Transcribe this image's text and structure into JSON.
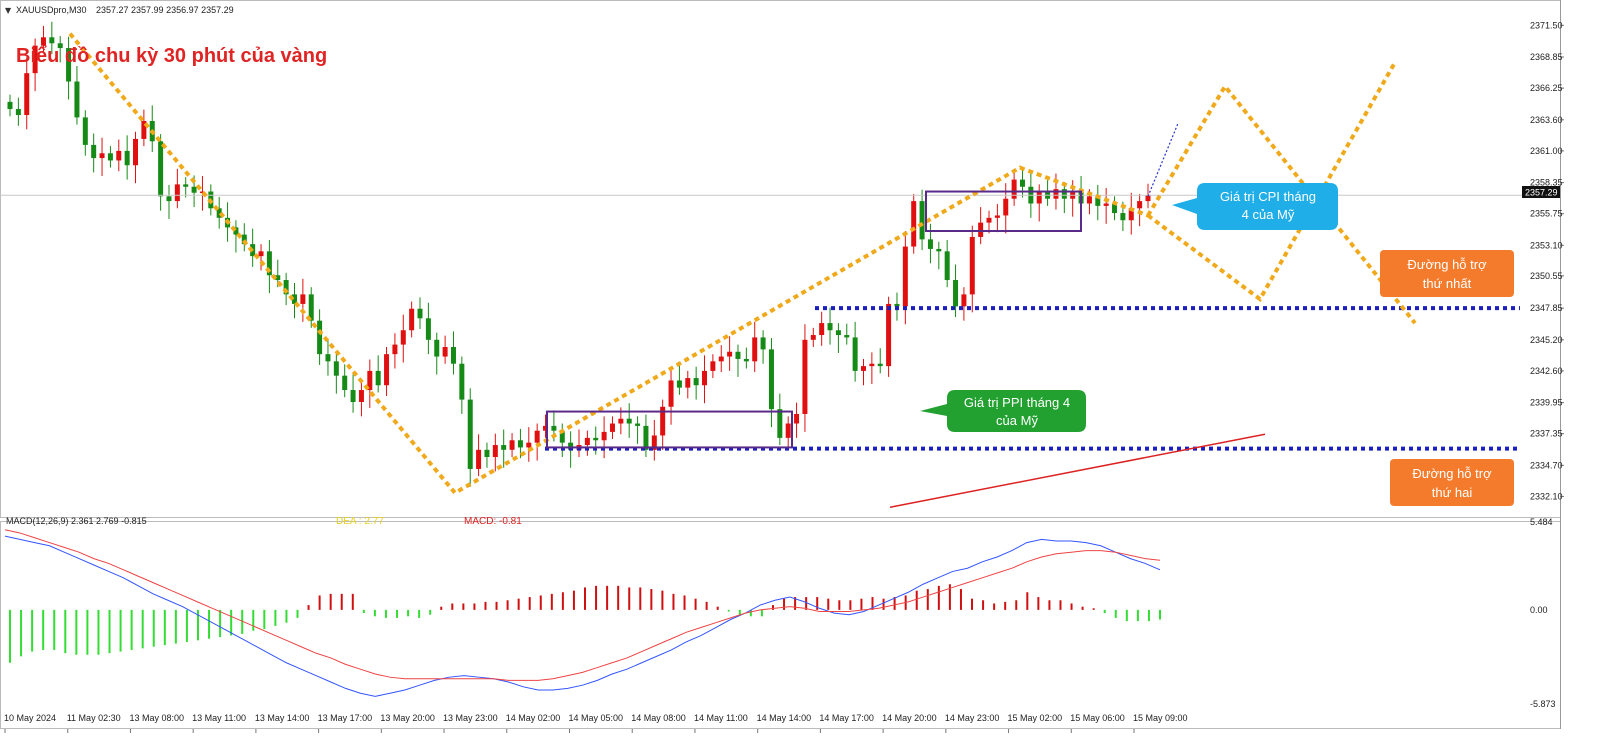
{
  "header": {
    "symbol_line": "XAUUSDpro,M30",
    "ohlc": "2357.27 2357.99 2356.97 2357.29",
    "chart_title": "Biểu đồ chu kỳ 30 phút của vàng"
  },
  "current_price_label": "2357.29",
  "macd_header": {
    "label": "MACD(12,26,9) 2.361 2.769 -0.815",
    "dea": "DEA : 2.77",
    "macd": "MACD: -0.81"
  },
  "callouts": {
    "cpi_line1": "Giá trị CPI tháng",
    "cpi_line2": "4 của Mỹ",
    "ppi_line1": "Giá trị PPI tháng 4",
    "ppi_line2": "của Mỹ",
    "support1_line1": "Đường hỗ trợ",
    "support1_line2": "thứ nhất",
    "support2_line1": "Đường hỗ trợ",
    "support2_line2": "thứ hai"
  },
  "colors": {
    "bull": "#e01010",
    "bear": "#168a16",
    "zigzag": "#f0a91b",
    "support": "#1b1fc0",
    "box": "#5a2a8a",
    "cpi_callout": "#1faee8",
    "ppi_callout": "#22a030",
    "support_callout": "#f47b2c",
    "hist_pos": "#d01010",
    "hist_neg": "#33dd33",
    "macd_line": "#3355ff",
    "signal_line": "#ee4444"
  },
  "chart_data": {
    "type": "candlestick",
    "price_axis": {
      "ylim": [
        2330.8,
        2373.2
      ],
      "ticks": [
        "2371.50",
        "2368.85",
        "2366.25",
        "2363.60",
        "2361.00",
        "2358.35",
        "2355.75",
        "2353.10",
        "2350.55",
        "2347.85",
        "2345.20",
        "2342.60",
        "2339.95",
        "2337.35",
        "2334.70",
        "2332.10"
      ]
    },
    "time_axis": {
      "ticks": [
        "10 May 2024",
        "11 May 02:30",
        "13 May 08:00",
        "13 May 11:00",
        "13 May 14:00",
        "13 May 17:00",
        "13 May 20:00",
        "13 May 23:00",
        "14 May 02:00",
        "14 May 05:00",
        "14 May 08:00",
        "14 May 11:00",
        "14 May 14:00",
        "14 May 17:00",
        "14 May 20:00",
        "14 May 23:00",
        "15 May 02:00",
        "15 May 06:00",
        "15 May 09:00"
      ]
    },
    "ohlc_close": [
      2364.5,
      2364.0,
      2367.5,
      2369.8,
      2370.5,
      2370.0,
      2369.6,
      2366.8,
      2363.8,
      2361.5,
      2360.4,
      2360.8,
      2360.2,
      2361.0,
      2359.8,
      2362.0,
      2363.5,
      2361.8,
      2357.2,
      2356.8,
      2358.2,
      2358.0,
      2357.5,
      2357.6,
      2356.2,
      2355.4,
      2354.6,
      2354.0,
      2353.2,
      2352.2,
      2352.6,
      2350.6,
      2350.2,
      2349.0,
      2348.2,
      2349.0,
      2346.8,
      2344.0,
      2343.4,
      2342.2,
      2341.0,
      2340.0,
      2341.0,
      2342.6,
      2341.4,
      2344.0,
      2344.8,
      2346.0,
      2347.8,
      2347.0,
      2345.2,
      2343.8,
      2344.6,
      2343.2,
      2340.2,
      2334.4,
      2336.0,
      2335.4,
      2336.4,
      2336.0,
      2336.8,
      2336.2,
      2336.6,
      2337.6,
      2338.0,
      2337.6,
      2336.6,
      2336.0,
      2336.4,
      2337.0,
      2336.8,
      2337.5,
      2338.2,
      2338.6,
      2338.2,
      2338.0,
      2336.0,
      2337.2,
      2339.6,
      2341.8,
      2341.2,
      2342.0,
      2341.4,
      2342.6,
      2343.4,
      2343.8,
      2344.2,
      2343.6,
      2343.4,
      2345.4,
      2344.4,
      2339.4,
      2337.0,
      2338.2,
      2339.0,
      2345.2,
      2345.6,
      2346.6,
      2346.0,
      2345.6,
      2345.4,
      2342.6,
      2343.0,
      2343.2,
      2343.0,
      2348.2,
      2348.0,
      2353.0,
      2356.8,
      2353.6,
      2352.8,
      2352.6,
      2350.2,
      2348.0,
      2349.0,
      2353.8,
      2355.0,
      2355.4,
      2355.6,
      2357.0,
      2358.6,
      2358.0,
      2356.6,
      2357.6,
      2357.0,
      2357.8,
      2357.0,
      2357.6,
      2356.6,
      2357.2,
      2356.4,
      2356.6,
      2355.8,
      2355.2,
      2356.2,
      2356.8,
      2357.3
    ],
    "horizontal_lines": [
      {
        "price": 2347.85,
        "style": "dotted"
      },
      {
        "price": 2336.1,
        "style": "dotted"
      }
    ],
    "macd": {
      "range": [
        -5.873,
        5.484
      ],
      "ticks": [
        "5.484",
        "0.00",
        "-5.873"
      ],
      "macd_line": [
        4.6,
        4.4,
        4.2,
        4.0,
        3.6,
        3.2,
        2.8,
        2.4,
        2.0,
        1.5,
        1.0,
        0.6,
        0.2,
        -0.3,
        -0.8,
        -1.3,
        -1.8,
        -2.3,
        -2.8,
        -3.3,
        -3.7,
        -4.1,
        -4.5,
        -4.9,
        -5.2,
        -5.4,
        -5.2,
        -5.0,
        -4.7,
        -4.4,
        -4.2,
        -4.1,
        -4.2,
        -4.3,
        -4.5,
        -4.8,
        -5.0,
        -5.0,
        -4.9,
        -4.7,
        -4.4,
        -4.0,
        -3.7,
        -3.3,
        -2.9,
        -2.5,
        -2.0,
        -1.6,
        -1.1,
        -0.6,
        -0.2,
        0.3,
        0.6,
        0.8,
        0.5,
        0.1,
        -0.2,
        -0.3,
        -0.1,
        0.3,
        0.7,
        1.1,
        1.6,
        2.0,
        2.4,
        2.6,
        3.0,
        3.3,
        3.7,
        4.2,
        4.4,
        4.3,
        4.3,
        4.2,
        4.0,
        3.6,
        3.2,
        2.9,
        2.5
      ],
      "signal_line": [
        5.0,
        4.8,
        4.5,
        4.2,
        3.9,
        3.6,
        3.2,
        2.9,
        2.5,
        2.1,
        1.7,
        1.3,
        0.9,
        0.5,
        0.1,
        -0.3,
        -0.7,
        -1.1,
        -1.5,
        -1.9,
        -2.3,
        -2.7,
        -3.0,
        -3.4,
        -3.7,
        -4.0,
        -4.2,
        -4.3,
        -4.3,
        -4.3,
        -4.3,
        -4.3,
        -4.3,
        -4.3,
        -4.4,
        -4.4,
        -4.4,
        -4.3,
        -4.1,
        -3.9,
        -3.6,
        -3.3,
        -3.0,
        -2.6,
        -2.2,
        -1.8,
        -1.4,
        -1.1,
        -0.8,
        -0.5,
        -0.2,
        0.0,
        0.1,
        0.2,
        0.1,
        -0.1,
        -0.1,
        -0.1,
        0.0,
        0.1,
        0.3,
        0.5,
        0.8,
        1.1,
        1.4,
        1.7,
        2.0,
        2.3,
        2.6,
        3.0,
        3.3,
        3.5,
        3.6,
        3.7,
        3.7,
        3.6,
        3.4,
        3.2,
        3.1
      ],
      "histogram": [
        -3.3,
        -2.9,
        -2.6,
        -2.5,
        -2.5,
        -2.7,
        -2.8,
        -2.8,
        -2.8,
        -2.7,
        -2.6,
        -2.5,
        -2.4,
        -2.3,
        -2.2,
        -2.1,
        -2.0,
        -1.9,
        -1.8,
        -1.7,
        -1.6,
        -1.5,
        -1.3,
        -1.2,
        -1.0,
        -0.8,
        -0.5,
        0.3,
        0.9,
        1.0,
        1.0,
        1.0,
        -0.2,
        -0.4,
        -0.5,
        -0.5,
        -0.4,
        -0.5,
        -0.3,
        0.2,
        0.4,
        0.4,
        0.4,
        0.5,
        0.5,
        0.6,
        0.7,
        0.8,
        0.9,
        1.0,
        1.1,
        1.2,
        1.4,
        1.5,
        1.5,
        1.5,
        1.4,
        1.4,
        1.3,
        1.2,
        1.0,
        0.9,
        0.7,
        0.5,
        0.2,
        -0.1,
        -0.3,
        -0.4,
        -0.4,
        0.3,
        0.7,
        0.8,
        0.8,
        0.8,
        0.7,
        0.6,
        0.6,
        0.7,
        0.8,
        0.7,
        0.8,
        0.9,
        1.2,
        1.3,
        1.5,
        1.6,
        1.3,
        0.7,
        0.6,
        0.4,
        0.5,
        0.6,
        1.1,
        0.8,
        0.6,
        0.6,
        0.4,
        0.2,
        0.1,
        -0.2,
        -0.5,
        -0.7,
        -0.7,
        -0.7,
        -0.6
      ]
    }
  }
}
